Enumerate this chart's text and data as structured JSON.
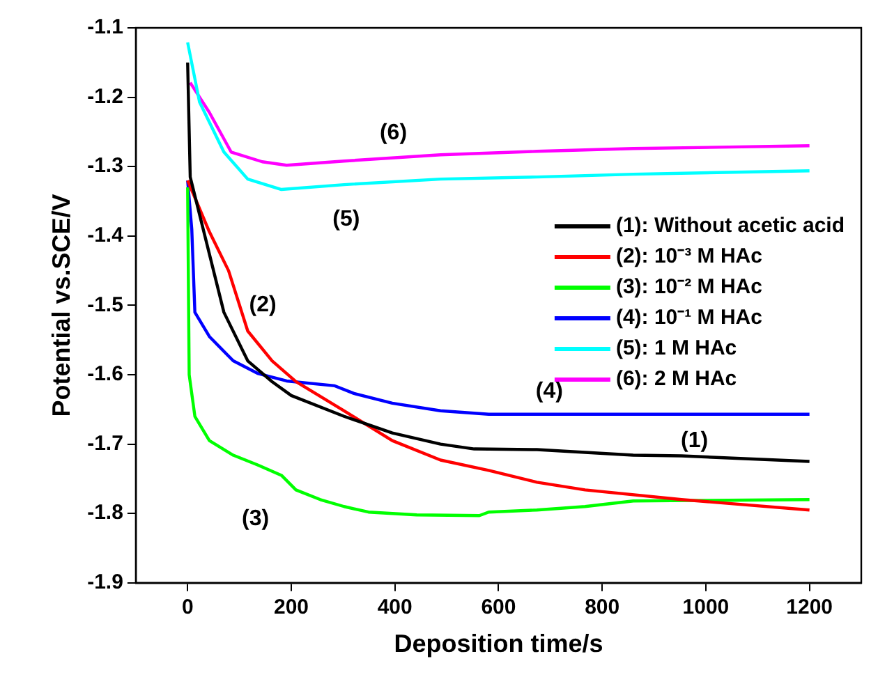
{
  "chart_data": {
    "type": "line",
    "xlabel": "Deposition time/s",
    "ylabel": "Potential vs.SCE/V",
    "xlim": [
      -100,
      1300
    ],
    "xticks": [
      0,
      200,
      400,
      600,
      800,
      1000,
      1200
    ],
    "ylim": [
      -1.9,
      -1.1
    ],
    "yticks": [
      -1.9,
      -1.8,
      -1.7,
      -1.6,
      -1.5,
      -1.4,
      -1.3,
      -1.2,
      -1.1
    ],
    "grid": false,
    "legend": "right",
    "marker": "none",
    "line_style": "solid",
    "series": [
      {
        "name": "(1): Without acetic acid",
        "color": "#000000",
        "x": [
          0,
          5,
          70,
          116,
          163,
          200,
          302,
          395,
          488,
          553,
          674,
          860,
          953,
          1200
        ],
        "values": [
          -1.15,
          -1.315,
          -1.51,
          -1.58,
          -1.61,
          -1.63,
          -1.66,
          -1.684,
          -1.7,
          -1.707,
          -1.708,
          -1.716,
          -1.717,
          -1.725
        ]
      },
      {
        "name": "(2): 10⁻³ M HAc",
        "color": "#ff0000",
        "x": [
          0,
          42,
          79,
          116,
          163,
          209,
          302,
          395,
          488,
          581,
          674,
          767,
          953,
          1200
        ],
        "values": [
          -1.32,
          -1.394,
          -1.45,
          -1.537,
          -1.58,
          -1.61,
          -1.652,
          -1.695,
          -1.723,
          -1.738,
          -1.755,
          -1.766,
          -1.78,
          -1.795
        ]
      },
      {
        "name": "(3): 10⁻² M HAc",
        "color": "#00ff00",
        "x": [
          0,
          3,
          14,
          42,
          88,
          135,
          181,
          209,
          256,
          302,
          349,
          442,
          563,
          581,
          674,
          767,
          860,
          1200
        ],
        "values": [
          -1.33,
          -1.6,
          -1.66,
          -1.695,
          -1.716,
          -1.73,
          -1.745,
          -1.766,
          -1.78,
          -1.79,
          -1.798,
          -1.802,
          -1.803,
          -1.798,
          -1.795,
          -1.79,
          -1.782,
          -1.78
        ]
      },
      {
        "name": "(4): 10⁻¹ M HAc",
        "color": "#0000ff",
        "x": [
          0,
          8,
          14,
          42,
          88,
          135,
          191,
          284,
          321,
          395,
          488,
          581,
          1200
        ],
        "values": [
          -1.32,
          -1.39,
          -1.51,
          -1.545,
          -1.58,
          -1.598,
          -1.609,
          -1.616,
          -1.627,
          -1.641,
          -1.652,
          -1.657,
          -1.657
        ]
      },
      {
        "name": "(5): 1 M HAc",
        "color": "#00ffff",
        "x": [
          0,
          23,
          70,
          116,
          181,
          302,
          488,
          674,
          860,
          1200
        ],
        "values": [
          -1.121,
          -1.207,
          -1.279,
          -1.318,
          -1.333,
          -1.326,
          -1.318,
          -1.315,
          -1.311,
          -1.306
        ]
      },
      {
        "name": "(6): 2 M HAc",
        "color": "#ff00ff",
        "x": [
          5,
          42,
          84,
          144,
          191,
          302,
          488,
          674,
          860,
          1200
        ],
        "values": [
          -1.179,
          -1.222,
          -1.279,
          -1.293,
          -1.298,
          -1.292,
          -1.283,
          -1.278,
          -1.274,
          -1.27
        ]
      }
    ],
    "annotations": [
      "(6)",
      "(5)",
      "(2)",
      "(4)",
      "(1)",
      "(3)"
    ]
  }
}
